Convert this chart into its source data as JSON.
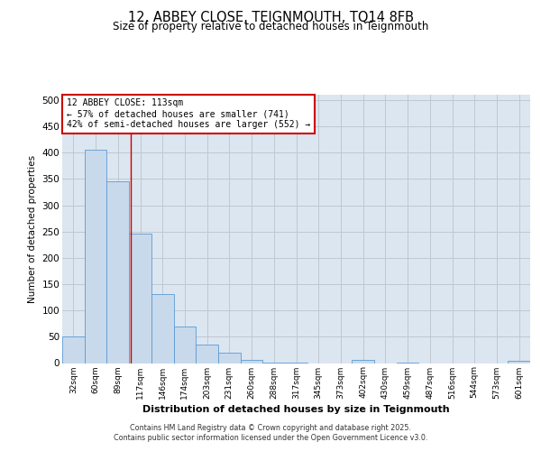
{
  "title_line1": "12, ABBEY CLOSE, TEIGNMOUTH, TQ14 8FB",
  "title_line2": "Size of property relative to detached houses in Teignmouth",
  "xlabel": "Distribution of detached houses by size in Teignmouth",
  "ylabel": "Number of detached properties",
  "bar_labels": [
    "32sqm",
    "60sqm",
    "89sqm",
    "117sqm",
    "146sqm",
    "174sqm",
    "203sqm",
    "231sqm",
    "260sqm",
    "288sqm",
    "317sqm",
    "345sqm",
    "373sqm",
    "402sqm",
    "430sqm",
    "459sqm",
    "487sqm",
    "516sqm",
    "544sqm",
    "573sqm",
    "601sqm"
  ],
  "bar_values": [
    51,
    405,
    346,
    246,
    131,
    70,
    35,
    19,
    6,
    1,
    1,
    0,
    0,
    6,
    0,
    1,
    0,
    0,
    0,
    0,
    4
  ],
  "bar_color": "#c8d9eb",
  "bar_edge_color": "#5b9bd5",
  "grid_color": "#c0c8d0",
  "background_color": "#dce6f0",
  "vline_x": 2.57,
  "vline_color": "#cc0000",
  "annotation_line1": "12 ABBEY CLOSE: 113sqm",
  "annotation_line2": "← 57% of detached houses are smaller (741)",
  "annotation_line3": "42% of semi-detached houses are larger (552) →",
  "annotation_box_color": "#ffffff",
  "annotation_box_edge": "#cc0000",
  "ylim": [
    0,
    510
  ],
  "yticks": [
    0,
    50,
    100,
    150,
    200,
    250,
    300,
    350,
    400,
    450,
    500
  ],
  "footer_line1": "Contains HM Land Registry data © Crown copyright and database right 2025.",
  "footer_line2": "Contains public sector information licensed under the Open Government Licence v3.0."
}
